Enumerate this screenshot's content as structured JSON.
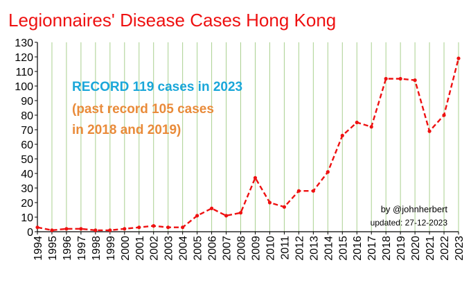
{
  "chart_data": {
    "type": "line",
    "title": "Legionnaires' Disease Cases Hong Kong",
    "x": [
      "1994",
      "1995",
      "1996",
      "1997",
      "1998",
      "1999",
      "2000",
      "2001",
      "2002",
      "2003",
      "2004",
      "2005",
      "2006",
      "2007",
      "2008",
      "2009",
      "2010",
      "2011",
      "2012",
      "2013",
      "2014",
      "2015",
      "2016",
      "2017",
      "2018",
      "2019",
      "2020",
      "2021",
      "2022",
      "2023"
    ],
    "series": [
      {
        "values": [
          3,
          1,
          2,
          2,
          1,
          1,
          2,
          3,
          4,
          3,
          3,
          11,
          16,
          11,
          13,
          37,
          20,
          17,
          28,
          28,
          41,
          66,
          75,
          72,
          105,
          105,
          104,
          69,
          80,
          119
        ]
      }
    ],
    "ylim": [
      0,
      130
    ],
    "y_ticks": [
      0,
      10,
      20,
      30,
      40,
      50,
      60,
      70,
      80,
      90,
      100,
      110,
      120,
      130
    ],
    "grid": "vertical",
    "line_style": "dashed",
    "marker": "circle",
    "colors": {
      "title": "#ee1111",
      "line": "#ee1111",
      "grid": "#a9d08e",
      "annotation_blue": "#1aa7d9",
      "annotation_orange": "#e98b3a"
    },
    "annotations": {
      "line1": "RECORD 119 cases in 2023",
      "line2": "(past record 105 cases",
      "line3": "in 2018 and 2019)",
      "credit": "by @johnherbert",
      "updated": "updated: 27-12-2023"
    }
  }
}
